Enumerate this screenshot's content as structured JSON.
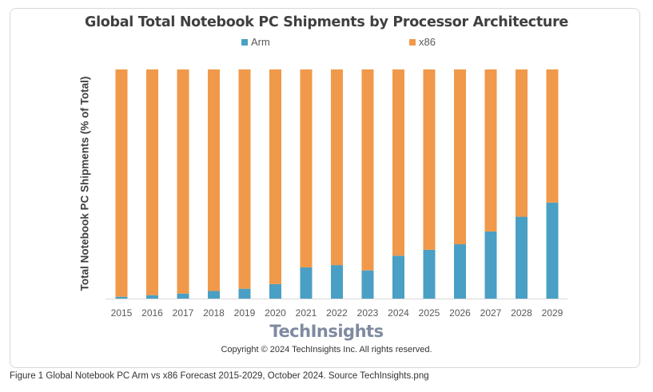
{
  "chart_data": {
    "type": "bar",
    "stacked": true,
    "title": "Global Total Notebook PC Shipments by Processor Architecture",
    "xlabel": "",
    "ylabel": "Total Notebook PC Shipments (% of Total)",
    "ylim": [
      0,
      100
    ],
    "grid": false,
    "legend_position": "top",
    "categories": [
      "2015",
      "2016",
      "2017",
      "2018",
      "2019",
      "2020",
      "2021",
      "2022",
      "2023",
      "2024",
      "2025",
      "2026",
      "2027",
      "2028",
      "2029"
    ],
    "series": [
      {
        "name": "Arm",
        "color": "#4a9fc4",
        "values": [
          0.8,
          1.5,
          2.2,
          3.3,
          4.3,
          6.3,
          13.6,
          14.6,
          12.3,
          18.7,
          21.3,
          23.7,
          29.3,
          35.7,
          41.9
        ]
      },
      {
        "name": "x86",
        "color": "#f0994a",
        "values": [
          99.2,
          98.5,
          97.8,
          96.7,
          95.7,
          93.7,
          86.4,
          85.4,
          87.7,
          81.3,
          78.7,
          76.3,
          70.7,
          64.3,
          58.1
        ]
      }
    ]
  },
  "logo_text": "TechInsights",
  "copyright": "Copyright © 2024 TechInsights Inc.  All rights reserved.",
  "caption": "Figure 1 Global Notebook PC Arm vs x86 Forecast 2015-2029, October 2024. Source TechInsights.png"
}
